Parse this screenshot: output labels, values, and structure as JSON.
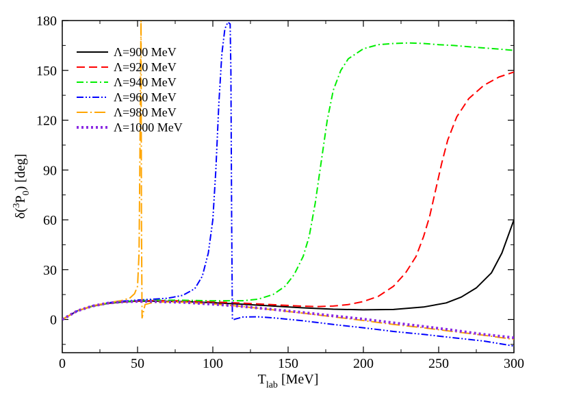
{
  "chart_data": {
    "type": "line",
    "title": "",
    "xlabel_main": "T",
    "xlabel_sub": "lab",
    "xlabel_unit": " [MeV]",
    "ylabel_pre": "δ(",
    "ylabel_sup": "3",
    "ylabel_main": "P",
    "ylabel_sub": "0",
    "ylabel_post": ") [deg]",
    "xlim": [
      0,
      300
    ],
    "ylim": [
      -20,
      180
    ],
    "xticks": [
      0,
      50,
      100,
      150,
      200,
      250,
      300
    ],
    "yticks": [
      0,
      30,
      60,
      90,
      120,
      150,
      180
    ],
    "legend_position": "top-left",
    "series": [
      {
        "name": "Λ=900 MeV",
        "color": "#000000",
        "dash": "solid",
        "x": [
          0,
          10,
          20,
          30,
          40,
          50,
          60,
          80,
          100,
          120,
          140,
          160,
          180,
          200,
          220,
          240,
          255,
          265,
          275,
          285,
          292,
          300
        ],
        "y": [
          0,
          5.2,
          8,
          9.6,
          10.5,
          11,
          11.1,
          10.8,
          10.1,
          9.2,
          8.1,
          7,
          6.2,
          5.8,
          6,
          7.5,
          10,
          13.5,
          19,
          28,
          40,
          60
        ]
      },
      {
        "name": "Λ=920 MeV",
        "color": "#ff0000",
        "dash": "dashed",
        "x": [
          0,
          10,
          20,
          30,
          40,
          50,
          60,
          80,
          100,
          120,
          140,
          160,
          170,
          180,
          190,
          200,
          210,
          220,
          228,
          235,
          240,
          244,
          248,
          252,
          256,
          262,
          270,
          280,
          290,
          300
        ],
        "y": [
          0,
          5.2,
          8,
          9.7,
          10.6,
          11.2,
          11.4,
          11.2,
          10.6,
          9.8,
          8.9,
          8,
          7.8,
          8.1,
          9,
          10.8,
          14,
          20,
          28,
          38,
          50,
          62,
          78,
          94,
          108,
          122,
          133,
          141,
          146,
          149
        ]
      },
      {
        "name": "Λ=940 MeV",
        "color": "#00ee00",
        "dash": "dashdot",
        "x": [
          0,
          10,
          20,
          30,
          40,
          50,
          60,
          80,
          100,
          120,
          130,
          140,
          148,
          154,
          160,
          164,
          168,
          172,
          176,
          180,
          185,
          190,
          200,
          210,
          220,
          230,
          240,
          250,
          260,
          270,
          280,
          290,
          300
        ],
        "y": [
          0,
          5.2,
          8.1,
          9.8,
          10.8,
          11.4,
          11.6,
          11.6,
          11.2,
          11.3,
          12.2,
          15,
          20,
          27,
          38,
          50,
          70,
          95,
          120,
          138,
          150,
          157,
          163,
          165.5,
          166.2,
          166.5,
          166.2,
          165.5,
          165,
          164.2,
          163.5,
          162.8,
          162
        ]
      },
      {
        "name": "Λ=960 MeV",
        "color": "#0000ff",
        "dash": "dashdotdot",
        "x": [
          0,
          10,
          20,
          30,
          40,
          50,
          60,
          70,
          80,
          88,
          93,
          97,
          100,
          102,
          104,
          106,
          108,
          110,
          111.5,
          112,
          112.5,
          113,
          113.5,
          115,
          120,
          130,
          140,
          160,
          180,
          200,
          220,
          240,
          260,
          280,
          300
        ],
        "y": [
          0,
          5.2,
          8.2,
          10,
          11,
          11.7,
          12.2,
          12.8,
          14.5,
          18.5,
          26,
          40,
          60,
          90,
          130,
          160,
          175,
          179,
          178,
          150,
          60,
          0,
          -0.2,
          0.3,
          1.5,
          1.6,
          1,
          -0.8,
          -3,
          -5,
          -7.2,
          -9,
          -11,
          -13,
          -16
        ]
      },
      {
        "name": "Λ=980 MeV",
        "color": "#ffa500",
        "dash": "longdashdot",
        "x": [
          0,
          10,
          20,
          30,
          40,
          45,
          48,
          50,
          51,
          51.5,
          52,
          52.3,
          52.6,
          53,
          55,
          60,
          70,
          80,
          100,
          120,
          140,
          160,
          180,
          200,
          220,
          240,
          260,
          280,
          300
        ],
        "y": [
          0,
          5.2,
          8.2,
          10,
          11.5,
          13,
          15.5,
          20,
          40,
          90,
          150,
          180,
          60,
          1,
          9,
          10.2,
          10.6,
          10.4,
          9.4,
          7.8,
          5.8,
          3.8,
          1.6,
          -0.6,
          -3,
          -5,
          -7.3,
          -9.5,
          -12
        ]
      },
      {
        "name": "Λ=1000 MeV",
        "color": "#8a2be2",
        "dash": "dotted",
        "x": [
          0,
          10,
          20,
          30,
          40,
          50,
          60,
          80,
          100,
          120,
          140,
          160,
          180,
          200,
          220,
          240,
          260,
          280,
          300
        ],
        "y": [
          0,
          5.2,
          8.1,
          9.8,
          10.6,
          10.9,
          10.8,
          10.3,
          9.2,
          7.8,
          6,
          4.2,
          2.2,
          0.2,
          -2,
          -4.2,
          -6.5,
          -9,
          -11
        ]
      }
    ]
  }
}
